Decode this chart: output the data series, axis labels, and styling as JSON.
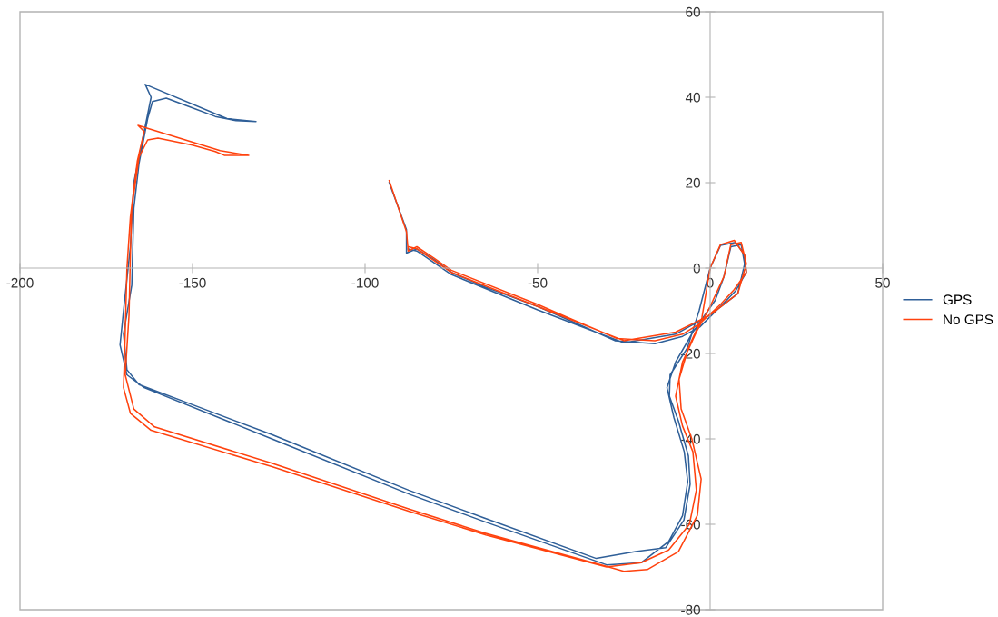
{
  "chart_data": {
    "type": "line",
    "xlim": [
      -200,
      50
    ],
    "ylim": [
      -80,
      60
    ],
    "xticks": [
      -200,
      -150,
      -100,
      -50,
      0,
      50
    ],
    "yticks": [
      -80,
      -60,
      -40,
      -20,
      0,
      20,
      40,
      60
    ],
    "grid": false,
    "legend": "right",
    "marker": "none",
    "line_style": "solid",
    "series": [
      {
        "name": "GPS",
        "color": "#2f5f98",
        "x": [
          -93,
          -88,
          -88,
          -85,
          -80,
          -75,
          -65,
          -50,
          -40,
          -27.6,
          -16,
          -8,
          -3,
          3,
          7.4,
          10.5,
          10,
          7.4,
          3,
          0,
          -3.2,
          -6.6,
          -11.6,
          -11.8,
          -9.2,
          -6.3,
          -5.8,
          -7.6,
          -12.9,
          -21.6,
          -33,
          -65.5,
          -87.4,
          -127,
          -150,
          -165.5,
          -169,
          -170,
          -167.6,
          -167,
          -165.5,
          -163,
          -161.6,
          -157.6,
          -150,
          -143.4,
          -137.4,
          -131.6,
          -140,
          -163.7,
          -162,
          -164,
          -167,
          -168,
          -170,
          -171,
          -169,
          -164,
          -127,
          -87,
          -65,
          -30,
          -20,
          -12,
          -8,
          -6.5,
          -7.5,
          -10.5,
          -12.5,
          -10,
          -5,
          1.5,
          4,
          6,
          9,
          10,
          8,
          0,
          -10,
          -25,
          -50,
          -75,
          -85,
          -87.5
        ],
        "values": [
          20,
          9,
          3.5,
          4.5,
          2,
          -1,
          -4.5,
          -9,
          -12.5,
          -17,
          -17.7,
          -16,
          -13.8,
          -9,
          -5.3,
          -1,
          3,
          6,
          5.3,
          0,
          -10,
          -18.7,
          -25,
          -30,
          -35.8,
          -44,
          -50.6,
          -59,
          -65.5,
          -66.4,
          -68,
          -58.5,
          -52,
          -39,
          -32,
          -27.3,
          -23.8,
          -15.4,
          -4,
          14,
          24.5,
          35,
          39,
          39.8,
          37.5,
          35.5,
          34.5,
          34.3,
          35,
          43,
          40,
          32,
          20,
          5,
          -10,
          -18,
          -25,
          -28,
          -40,
          -53,
          -59.5,
          -69.5,
          -69,
          -64,
          -58,
          -50,
          -43,
          -35,
          -28,
          -22,
          -15,
          -7.5,
          -2,
          5,
          5.5,
          1,
          -6,
          -11,
          -15.5,
          -17.5,
          -9.8,
          -1.5,
          4,
          4.5
        ]
      },
      {
        "name": "No GPS",
        "color": "#ff420e",
        "x": [
          -93,
          -88,
          -87.5,
          -85,
          -80,
          -75,
          -50,
          -40,
          -27,
          -16,
          -8,
          -3,
          3,
          7,
          10.5,
          10,
          7,
          3,
          0,
          -2.4,
          -6.3,
          -9,
          -8.4,
          -5.3,
          -2.6,
          -3.7,
          -9.2,
          -18.2,
          -25,
          -30.3,
          -65.5,
          -87.4,
          -127,
          -161,
          -167,
          -169.5,
          -168.4,
          -168,
          -167.6,
          -165.5,
          -163,
          -160,
          -150,
          -143.4,
          -140.8,
          -133.7,
          -142,
          -165.8,
          -164,
          -166,
          -168,
          -169,
          -169.5,
          -170,
          -168,
          -162,
          -127,
          -87,
          -65,
          -30,
          -20,
          -12,
          -6,
          -4,
          -5,
          -8,
          -10,
          -8,
          -4,
          0,
          4,
          6,
          9,
          10.5,
          8,
          0,
          -10,
          -25,
          -50,
          -75,
          -85,
          -87.5
        ],
        "values": [
          20.5,
          8.5,
          4,
          5,
          2.3,
          -0.5,
          -8.5,
          -12,
          -16.5,
          -17,
          -15.5,
          -13,
          -8.5,
          -5,
          -1,
          3,
          6.5,
          5.5,
          0,
          -11.7,
          -18.7,
          -26,
          -33,
          -40,
          -49.4,
          -57.9,
          -66.4,
          -70.6,
          -71,
          -69.8,
          -62,
          -56.4,
          -45.7,
          -37.2,
          -33,
          -25,
          -11,
          3.2,
          14,
          26,
          30,
          30.4,
          28.8,
          27.3,
          26.4,
          26.4,
          27.5,
          33.4,
          32,
          25,
          12,
          0,
          -15,
          -28,
          -34,
          -38,
          -46.5,
          -57,
          -62.5,
          -70,
          -69,
          -66,
          -60,
          -52,
          -43,
          -37,
          -30,
          -22,
          -15,
          -9,
          -2,
          5.5,
          6,
          1,
          -6,
          -11,
          -15,
          -17,
          -9,
          -1,
          4.5,
          5
        ]
      }
    ]
  }
}
